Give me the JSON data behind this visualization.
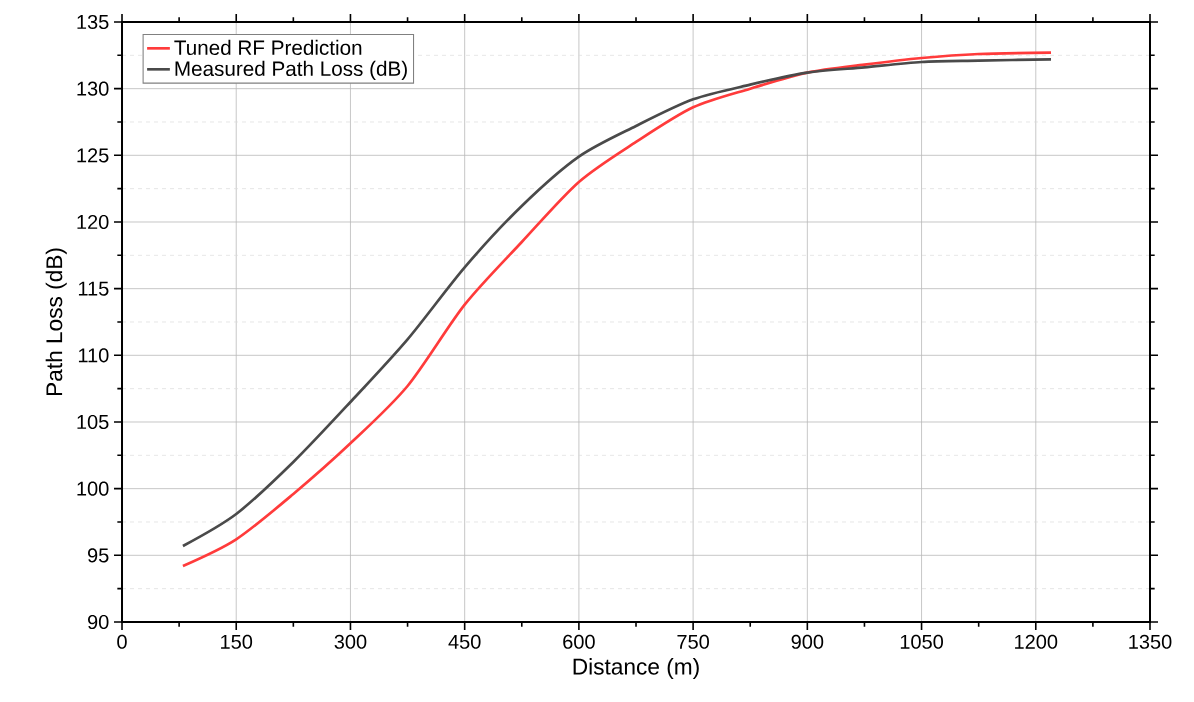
{
  "chart_data": {
    "type": "line",
    "xlabel": "Distance (m)",
    "ylabel": "Path Loss (dB)",
    "x": [
      80,
      150,
      225,
      300,
      375,
      450,
      525,
      600,
      675,
      750,
      825,
      900,
      975,
      1050,
      1125,
      1220
    ],
    "series": [
      {
        "name": "Tuned RF Prediction",
        "color": "#ff3b3b",
        "values": [
          94.2,
          96.2,
          99.6,
          103.4,
          107.7,
          113.8,
          118.5,
          123.0,
          126.0,
          128.6,
          130.0,
          131.2,
          131.8,
          132.3,
          132.6,
          132.7
        ]
      },
      {
        "name": "Measured Path Loss (dB)",
        "color": "#4a4a4a",
        "values": [
          95.7,
          98.1,
          102.0,
          106.5,
          111.2,
          116.6,
          121.2,
          124.9,
          127.2,
          129.2,
          130.3,
          131.2,
          131.6,
          132.0,
          132.1,
          132.2
        ]
      }
    ],
    "xlim": [
      0,
      1350
    ],
    "xticks": [
      0,
      150,
      300,
      450,
      600,
      750,
      900,
      1050,
      1200,
      1350
    ],
    "ylim": [
      90,
      135
    ],
    "yticks": [
      90,
      95,
      100,
      105,
      110,
      115,
      120,
      125,
      130,
      135
    ],
    "grid": true,
    "legend": "top left",
    "marker": "none",
    "line_style": "solid"
  }
}
